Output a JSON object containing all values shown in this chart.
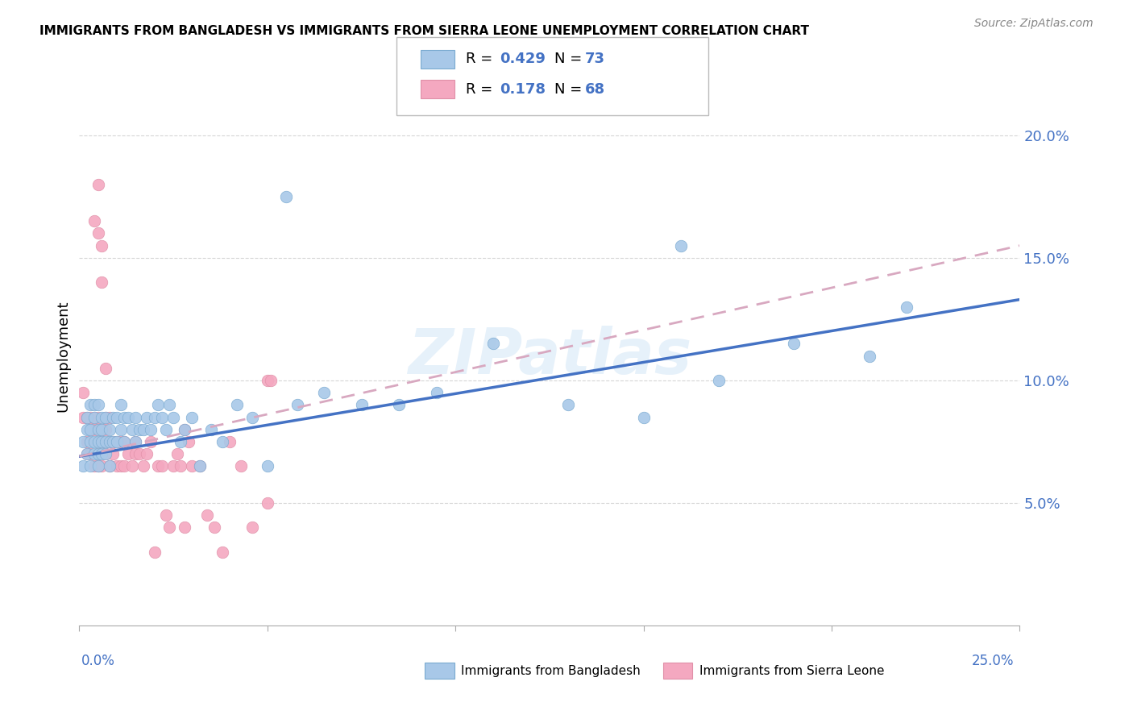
{
  "title": "IMMIGRANTS FROM BANGLADESH VS IMMIGRANTS FROM SIERRA LEONE UNEMPLOYMENT CORRELATION CHART",
  "source": "Source: ZipAtlas.com",
  "ylabel": "Unemployment",
  "y_ticks": [
    0.05,
    0.1,
    0.15,
    0.2
  ],
  "y_tick_labels": [
    "5.0%",
    "10.0%",
    "15.0%",
    "20.0%"
  ],
  "x_range": [
    0.0,
    0.25
  ],
  "y_range": [
    0.0,
    0.22
  ],
  "watermark": "ZIPatlas",
  "color_bangladesh": "#a8c8e8",
  "color_sierra_leone": "#f4a8c0",
  "color_line_bangladesh": "#4472c4",
  "color_line_sierra_leone": "#d8a8c0",
  "color_ytick": "#4472c4",
  "color_xtick_label": "#4472c4",
  "bd_line_x0": 0.0,
  "bd_line_y0": 0.069,
  "bd_line_x1": 0.25,
  "bd_line_y1": 0.133,
  "sl_line_x0": 0.0,
  "sl_line_y0": 0.069,
  "sl_line_x1": 0.25,
  "sl_line_y1": 0.155,
  "bangladesh_x": [
    0.001,
    0.001,
    0.002,
    0.002,
    0.002,
    0.003,
    0.003,
    0.003,
    0.003,
    0.004,
    0.004,
    0.004,
    0.004,
    0.005,
    0.005,
    0.005,
    0.005,
    0.005,
    0.006,
    0.006,
    0.006,
    0.006,
    0.007,
    0.007,
    0.007,
    0.008,
    0.008,
    0.008,
    0.009,
    0.009,
    0.01,
    0.01,
    0.011,
    0.011,
    0.012,
    0.012,
    0.013,
    0.014,
    0.015,
    0.015,
    0.016,
    0.017,
    0.018,
    0.019,
    0.02,
    0.021,
    0.022,
    0.023,
    0.024,
    0.025,
    0.027,
    0.028,
    0.03,
    0.032,
    0.035,
    0.038,
    0.042,
    0.046,
    0.05,
    0.058,
    0.065,
    0.075,
    0.085,
    0.095,
    0.11,
    0.13,
    0.15,
    0.17,
    0.19,
    0.21,
    0.055,
    0.16,
    0.22
  ],
  "bangladesh_y": [
    0.075,
    0.065,
    0.08,
    0.07,
    0.085,
    0.065,
    0.075,
    0.08,
    0.09,
    0.07,
    0.075,
    0.085,
    0.09,
    0.065,
    0.07,
    0.075,
    0.08,
    0.09,
    0.07,
    0.075,
    0.08,
    0.085,
    0.07,
    0.075,
    0.085,
    0.065,
    0.075,
    0.08,
    0.075,
    0.085,
    0.075,
    0.085,
    0.08,
    0.09,
    0.075,
    0.085,
    0.085,
    0.08,
    0.075,
    0.085,
    0.08,
    0.08,
    0.085,
    0.08,
    0.085,
    0.09,
    0.085,
    0.08,
    0.09,
    0.085,
    0.075,
    0.08,
    0.085,
    0.065,
    0.08,
    0.075,
    0.09,
    0.085,
    0.065,
    0.09,
    0.095,
    0.09,
    0.09,
    0.095,
    0.115,
    0.09,
    0.085,
    0.1,
    0.115,
    0.11,
    0.175,
    0.155,
    0.13
  ],
  "sierra_leone_x": [
    0.001,
    0.001,
    0.002,
    0.002,
    0.002,
    0.003,
    0.003,
    0.003,
    0.004,
    0.004,
    0.004,
    0.005,
    0.005,
    0.005,
    0.005,
    0.006,
    0.006,
    0.006,
    0.007,
    0.007,
    0.007,
    0.008,
    0.008,
    0.008,
    0.009,
    0.009,
    0.01,
    0.01,
    0.011,
    0.011,
    0.012,
    0.012,
    0.013,
    0.014,
    0.015,
    0.015,
    0.016,
    0.017,
    0.018,
    0.019,
    0.02,
    0.021,
    0.022,
    0.023,
    0.024,
    0.025,
    0.026,
    0.027,
    0.028,
    0.03,
    0.032,
    0.034,
    0.036,
    0.038,
    0.04,
    0.043,
    0.046,
    0.05,
    0.028,
    0.029,
    0.05,
    0.051,
    0.004,
    0.005,
    0.005,
    0.006,
    0.006,
    0.007
  ],
  "sierra_leone_y": [
    0.085,
    0.095,
    0.07,
    0.075,
    0.085,
    0.07,
    0.08,
    0.085,
    0.065,
    0.08,
    0.085,
    0.065,
    0.07,
    0.08,
    0.085,
    0.065,
    0.075,
    0.08,
    0.07,
    0.08,
    0.085,
    0.065,
    0.075,
    0.085,
    0.07,
    0.075,
    0.065,
    0.075,
    0.065,
    0.075,
    0.065,
    0.075,
    0.07,
    0.065,
    0.07,
    0.075,
    0.07,
    0.065,
    0.07,
    0.075,
    0.03,
    0.065,
    0.065,
    0.045,
    0.04,
    0.065,
    0.07,
    0.065,
    0.04,
    0.065,
    0.065,
    0.045,
    0.04,
    0.03,
    0.075,
    0.065,
    0.04,
    0.05,
    0.08,
    0.075,
    0.1,
    0.1,
    0.165,
    0.16,
    0.18,
    0.155,
    0.14,
    0.105
  ]
}
